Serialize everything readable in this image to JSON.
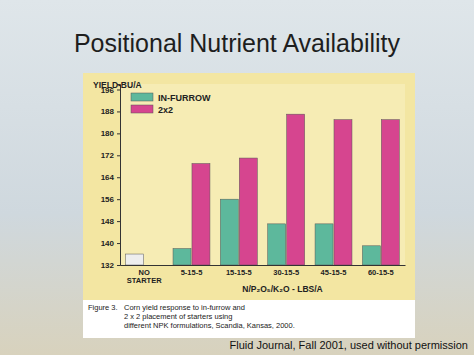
{
  "chart_data": {
    "type": "bar",
    "title": "Positional Nutrient Availability",
    "y_label": "YIELD-BU/A",
    "x_label": "N/P₂O₅/K₂O - LBS/A",
    "categories": [
      "NO STARTER",
      "5-15-5",
      "15-15-5",
      "30-15-5",
      "45-15-5",
      "60-15-5"
    ],
    "series": [
      {
        "name": "IN-FURROW",
        "color": "#5db89c",
        "colors": [
          "#eeeeee",
          "#5db89c",
          "#5db89c",
          "#5db89c",
          "#5db89c",
          "#5db89c"
        ],
        "values": [
          136,
          138,
          156,
          147,
          147,
          139
        ]
      },
      {
        "name": "2x2",
        "color": "#d6458f",
        "values": [
          null,
          169,
          171,
          187,
          185,
          185
        ]
      }
    ],
    "ylim": [
      132,
      198
    ],
    "yticks": [
      132,
      140,
      148,
      156,
      164,
      172,
      180,
      188,
      196
    ],
    "grid": false,
    "legend": "top-left",
    "caption": [
      "Figure 3.",
      "Corn yield response to in-furrow and",
      "2 x 2 placement of starters using",
      "different NPK formulations, Scandia, Kansas, 2000."
    ],
    "source": "Fluid Journal, Fall 2001, used without permission"
  }
}
